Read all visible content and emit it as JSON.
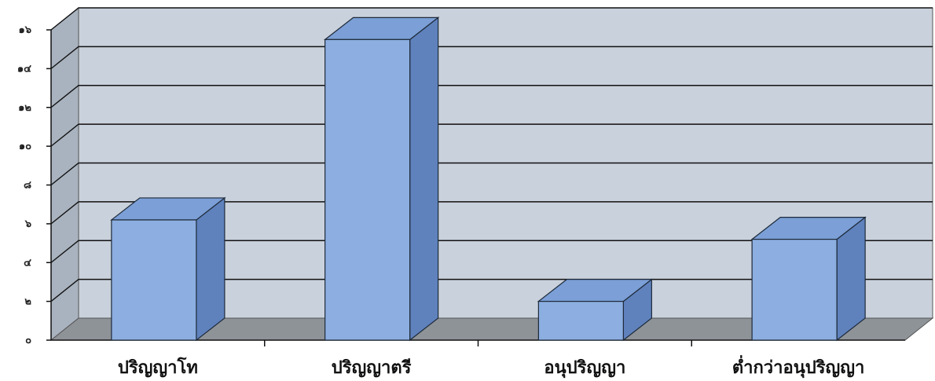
{
  "chart_data": {
    "type": "bar",
    "categories": [
      "ปริญญาโท",
      "ปริญญาตรี",
      "อนุปริญญา",
      "ต่ำกว่าอนุปริญญา"
    ],
    "values": [
      6.2,
      15.5,
      2,
      5.2
    ],
    "ylim": [
      0,
      16
    ],
    "yticks": [
      0,
      2,
      4,
      6,
      8,
      10,
      12,
      14,
      16
    ],
    "ytick_labels": [
      "๐",
      "๒",
      "๔",
      "๖",
      "๘",
      "๑๐",
      "๑๒",
      "๑๔",
      "๑๖"
    ],
    "grid": true,
    "title": "",
    "xlabel": "",
    "ylabel": ""
  },
  "colors": {
    "wall": "#c9d1dc",
    "side_wall": "#a9b3bf",
    "floor": "#8e9398",
    "bar_front": "#8caee0",
    "bar_side": "#5f82bd",
    "bar_top": "#7b9fd6",
    "outline": "#1e2a3a"
  }
}
